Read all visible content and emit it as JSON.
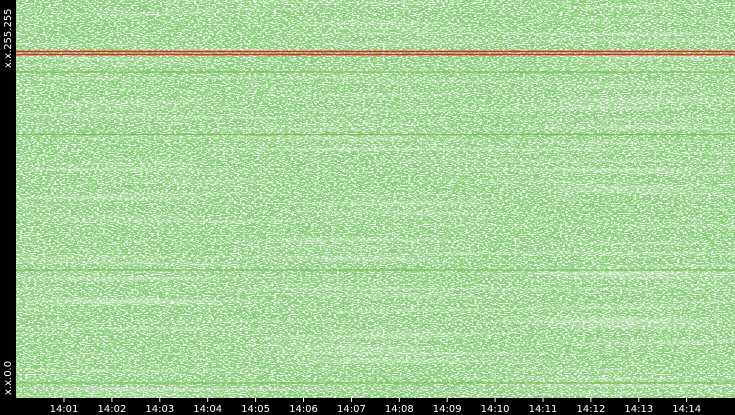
{
  "y_axis_labels": {
    "top": "x.x.255.255",
    "bottom": "x.x.0.0"
  },
  "x_axis_labels": [
    "14:01",
    "14:02",
    "14:03",
    "14:04",
    "14:05",
    "14:06",
    "14:07",
    "14:08",
    "14:09",
    "14:10",
    "14:11",
    "14:12",
    "14:13",
    "14:14"
  ]
}
